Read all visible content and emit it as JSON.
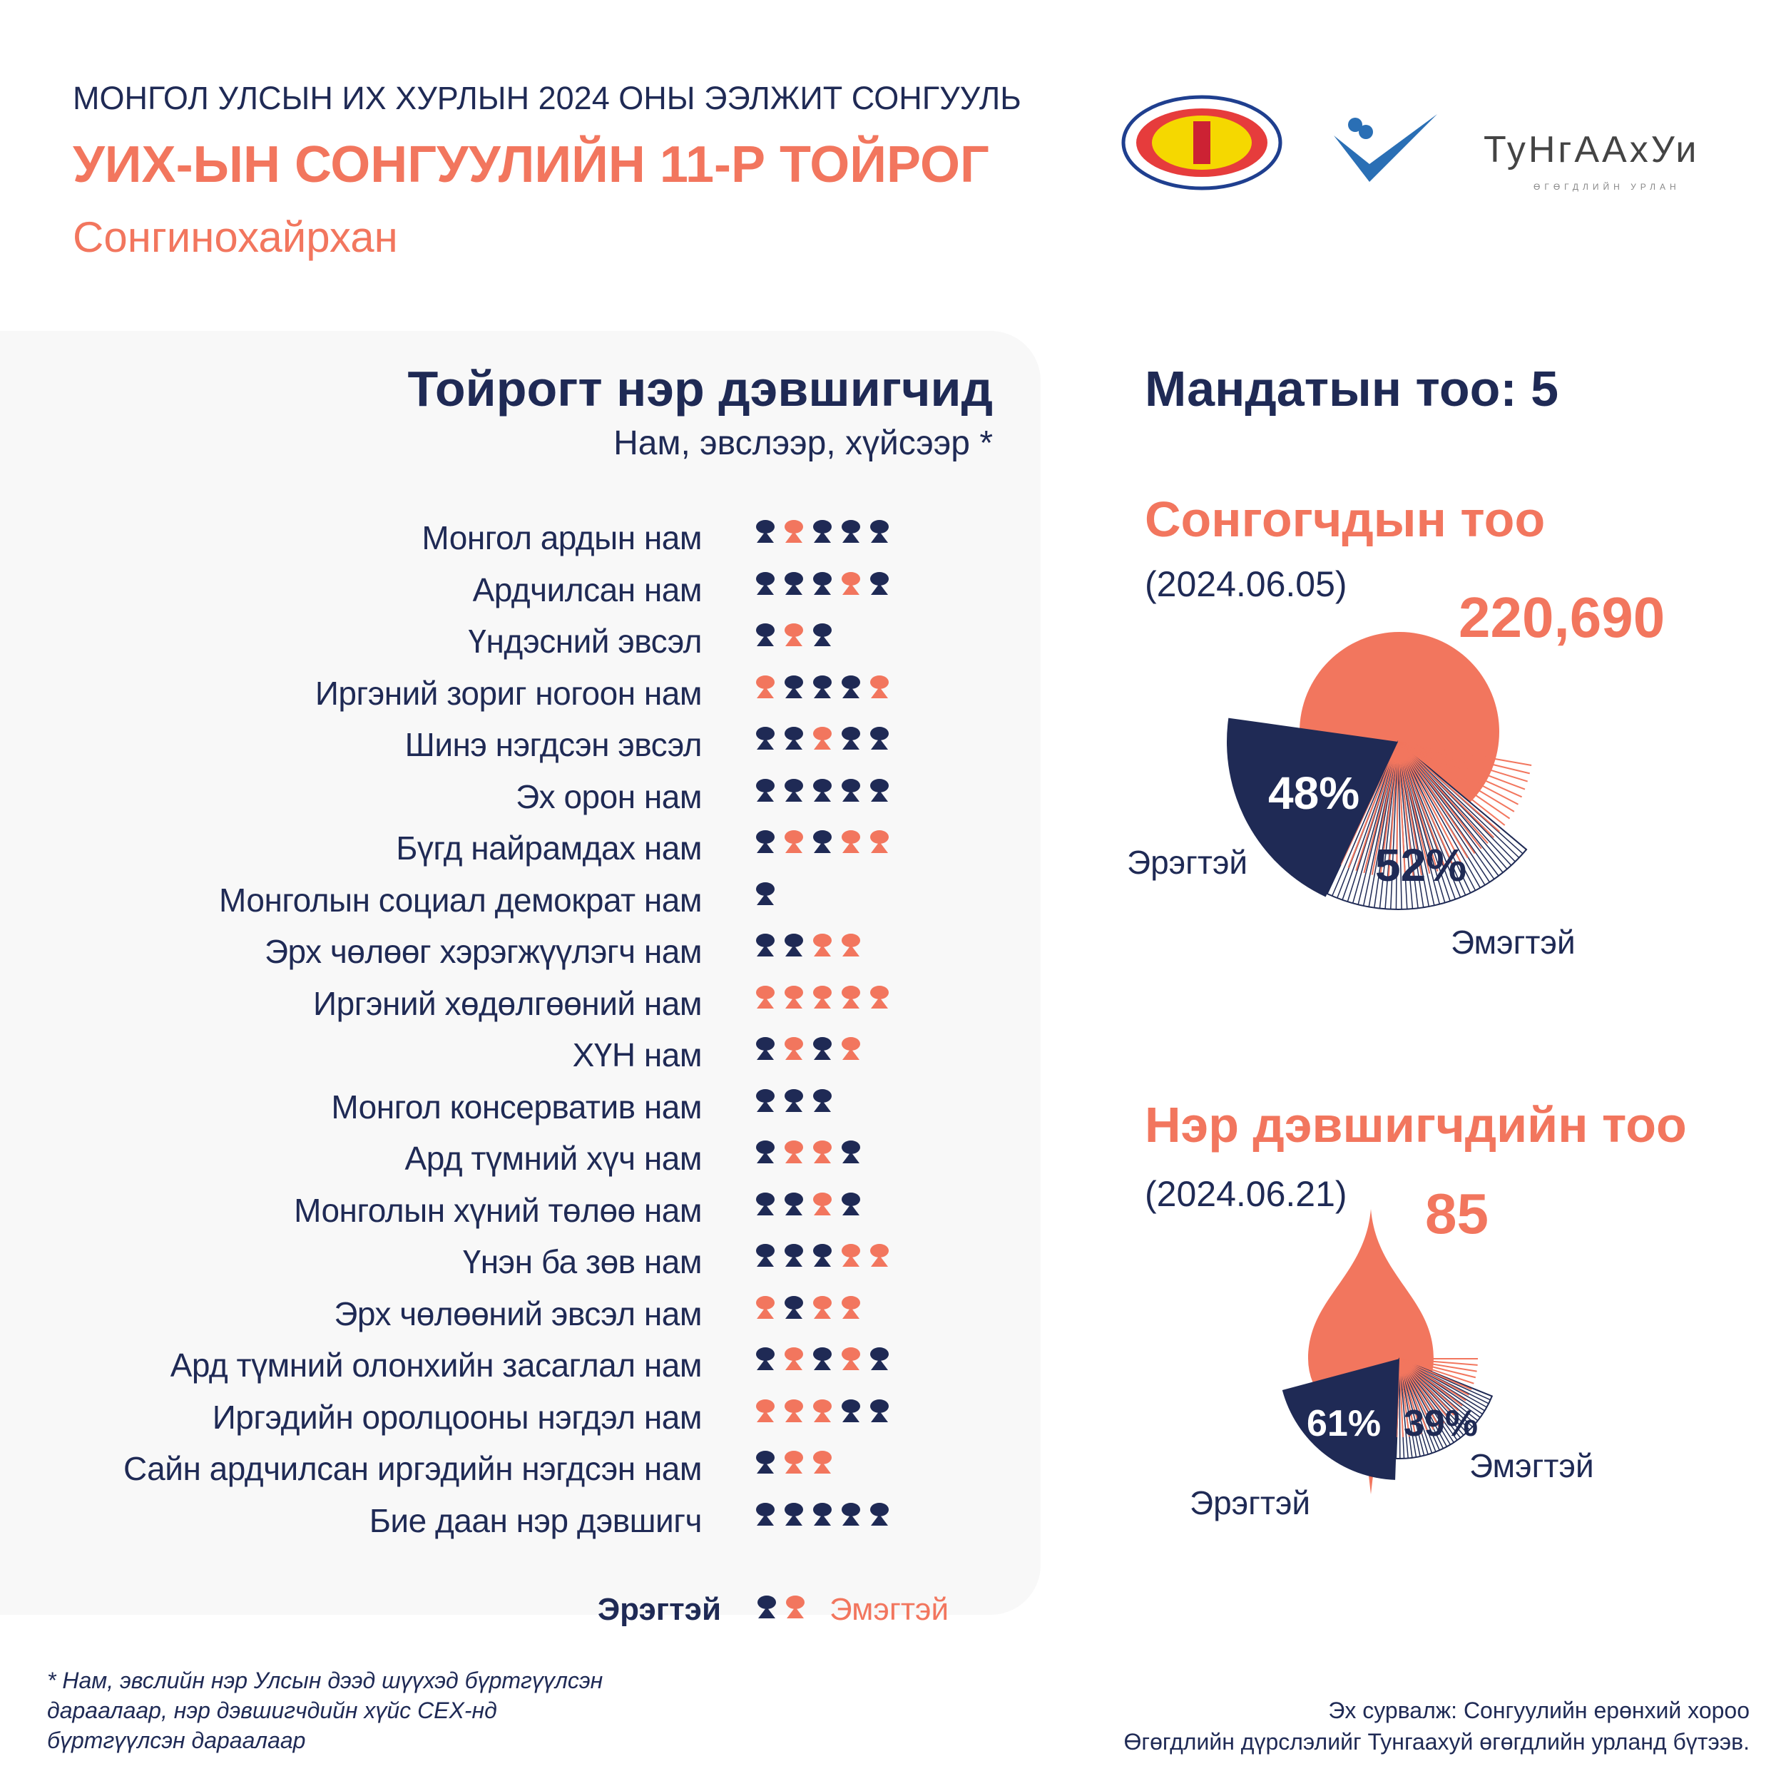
{
  "header": {
    "supertitle": "МОНГОЛ УЛСЫН ИХ ХУРЛЫН 2024 ОНЫ ЭЭЛЖИТ СОНГУУЛЬ",
    "title": "УИХ-ЫН СОНГУУЛИЙН 11-Р ТОЙРОГ",
    "district": "Сонгинохайрхан"
  },
  "logos": {
    "gec": "СОНГУУЛИЙН ЕРӨНХИЙ ХОРОО · GENERAL ELECTION COMMISSION OF MONGOLIA",
    "gec2": "СОНГУУЛИЙН ЕРӨНХИЙ ХОРОО",
    "tungaakhui": "ТуНгААхУи",
    "tungaakhui_sub": "ӨГӨГДЛИЙН УРЛАН"
  },
  "candidates": {
    "title": "Тойрогт нэр дэвшигчид",
    "subtitle": "Нам, эвслээр, хүйсээр *",
    "rows": [
      {
        "party": "Монгол ардын нам",
        "genders": "MFMMM"
      },
      {
        "party": "Ардчилсан нам",
        "genders": "MMMFM"
      },
      {
        "party": "Үндэсний эвсэл",
        "genders": "MFM"
      },
      {
        "party": "Иргэний зориг ногоон нам",
        "genders": "FMMMF"
      },
      {
        "party": "Шинэ нэгдсэн эвсэл",
        "genders": "MMFMM"
      },
      {
        "party": "Эх орон нам",
        "genders": "MMMMM"
      },
      {
        "party": "Бүгд найрамдах нам",
        "genders": "MFMFF"
      },
      {
        "party": "Монголын социал демократ нам",
        "genders": "M"
      },
      {
        "party": "Эрх чөлөөг хэрэгжүүлэгч нам",
        "genders": "MMFF"
      },
      {
        "party": "Иргэний хөдөлгөөний нам",
        "genders": "FFFFF"
      },
      {
        "party": "ХҮН нам",
        "genders": "MFMF"
      },
      {
        "party": "Монгол консерватив нам",
        "genders": "MMM"
      },
      {
        "party": "Ард түмний хүч нам",
        "genders": "MFFM"
      },
      {
        "party": "Монголын хүний төлөө нам",
        "genders": "MMFM"
      },
      {
        "party": "Үнэн ба зөв нам",
        "genders": "MMMFF"
      },
      {
        "party": "Эрх чөлөөний эвсэл нам",
        "genders": "FMFF"
      },
      {
        "party": "Ард түмний олонхийн засаглал нам",
        "genders": "MFMFM"
      },
      {
        "party": "Иргэдийн оролцооны нэгдэл нам",
        "genders": "FFFMM"
      },
      {
        "party": "Сайн ардчилсан иргэдийн нэгдсэн нам",
        "genders": "MFF"
      },
      {
        "party": "Бие даан нэр дэвшигч",
        "genders": "MMMMM"
      }
    ],
    "legend": {
      "male": "Эрэгтэй",
      "female": "Эмэгтэй"
    }
  },
  "mandates": {
    "label": "Мандатын тоо: 5"
  },
  "voters": {
    "title": "Сонгогчдын тоо",
    "date": "(2024.06.05)",
    "total": "220,690",
    "male_pct": "48%",
    "female_pct": "52%",
    "male_label": "Эрэгтэй",
    "female_label": "Эмэгтэй",
    "male_share": 48,
    "female_share": 52
  },
  "nominees": {
    "title": "Нэр дэвшигчдийн тоо",
    "date": "(2024.06.21)",
    "total": "85",
    "male_pct": "61%",
    "female_pct": "39%",
    "male_label": "Эрэгтэй",
    "female_label": "Эмэгтэй",
    "male_share": 61,
    "female_share": 39
  },
  "footnote": "* Нам, эвслийн нэр Улсын дээд шүүхэд бүртгүүлсэн дараалаар, нэр дэвшигчдийн хүйс СЕХ-нд бүртгүүлсэн дараалаар",
  "source": {
    "line1": "Эх сурвалж: Сонгуулийн ерөнхий хороо",
    "line2": "Өгөгдлийн дүрслэлийг Тунгаахуй өгөгдлийн урланд бүтээв."
  },
  "colors": {
    "navy": "#1f2a55",
    "orange": "#f2765e"
  }
}
